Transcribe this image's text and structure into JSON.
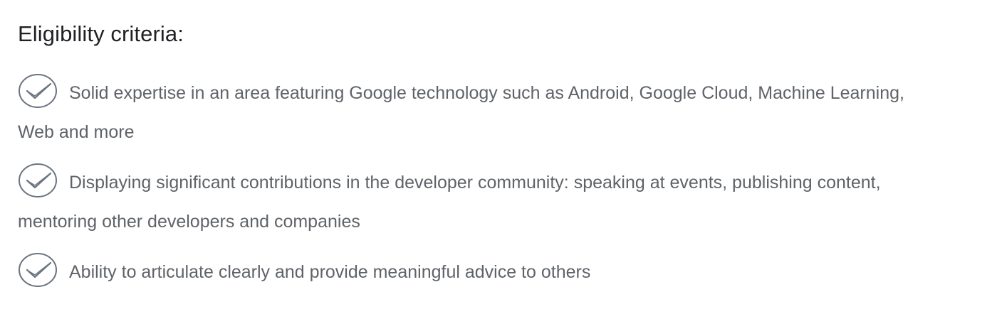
{
  "heading": "Eligibility criteria:",
  "criteria": [
    {
      "icon": "check-circle-icon",
      "text": "Solid expertise in an area featuring Google technology such as Android, Google Cloud, Machine Learning, Web and more"
    },
    {
      "icon": "check-circle-icon",
      "text": "Displaying significant contributions in the developer community: speaking at events, publishing content, mentoring other developers and companies"
    },
    {
      "icon": "check-circle-icon",
      "text": "Ability to articulate clearly and provide meaningful advice to others"
    }
  ],
  "colors": {
    "heading": "#202124",
    "body_text": "#5f6368",
    "icon_stroke": "#6b7480"
  }
}
